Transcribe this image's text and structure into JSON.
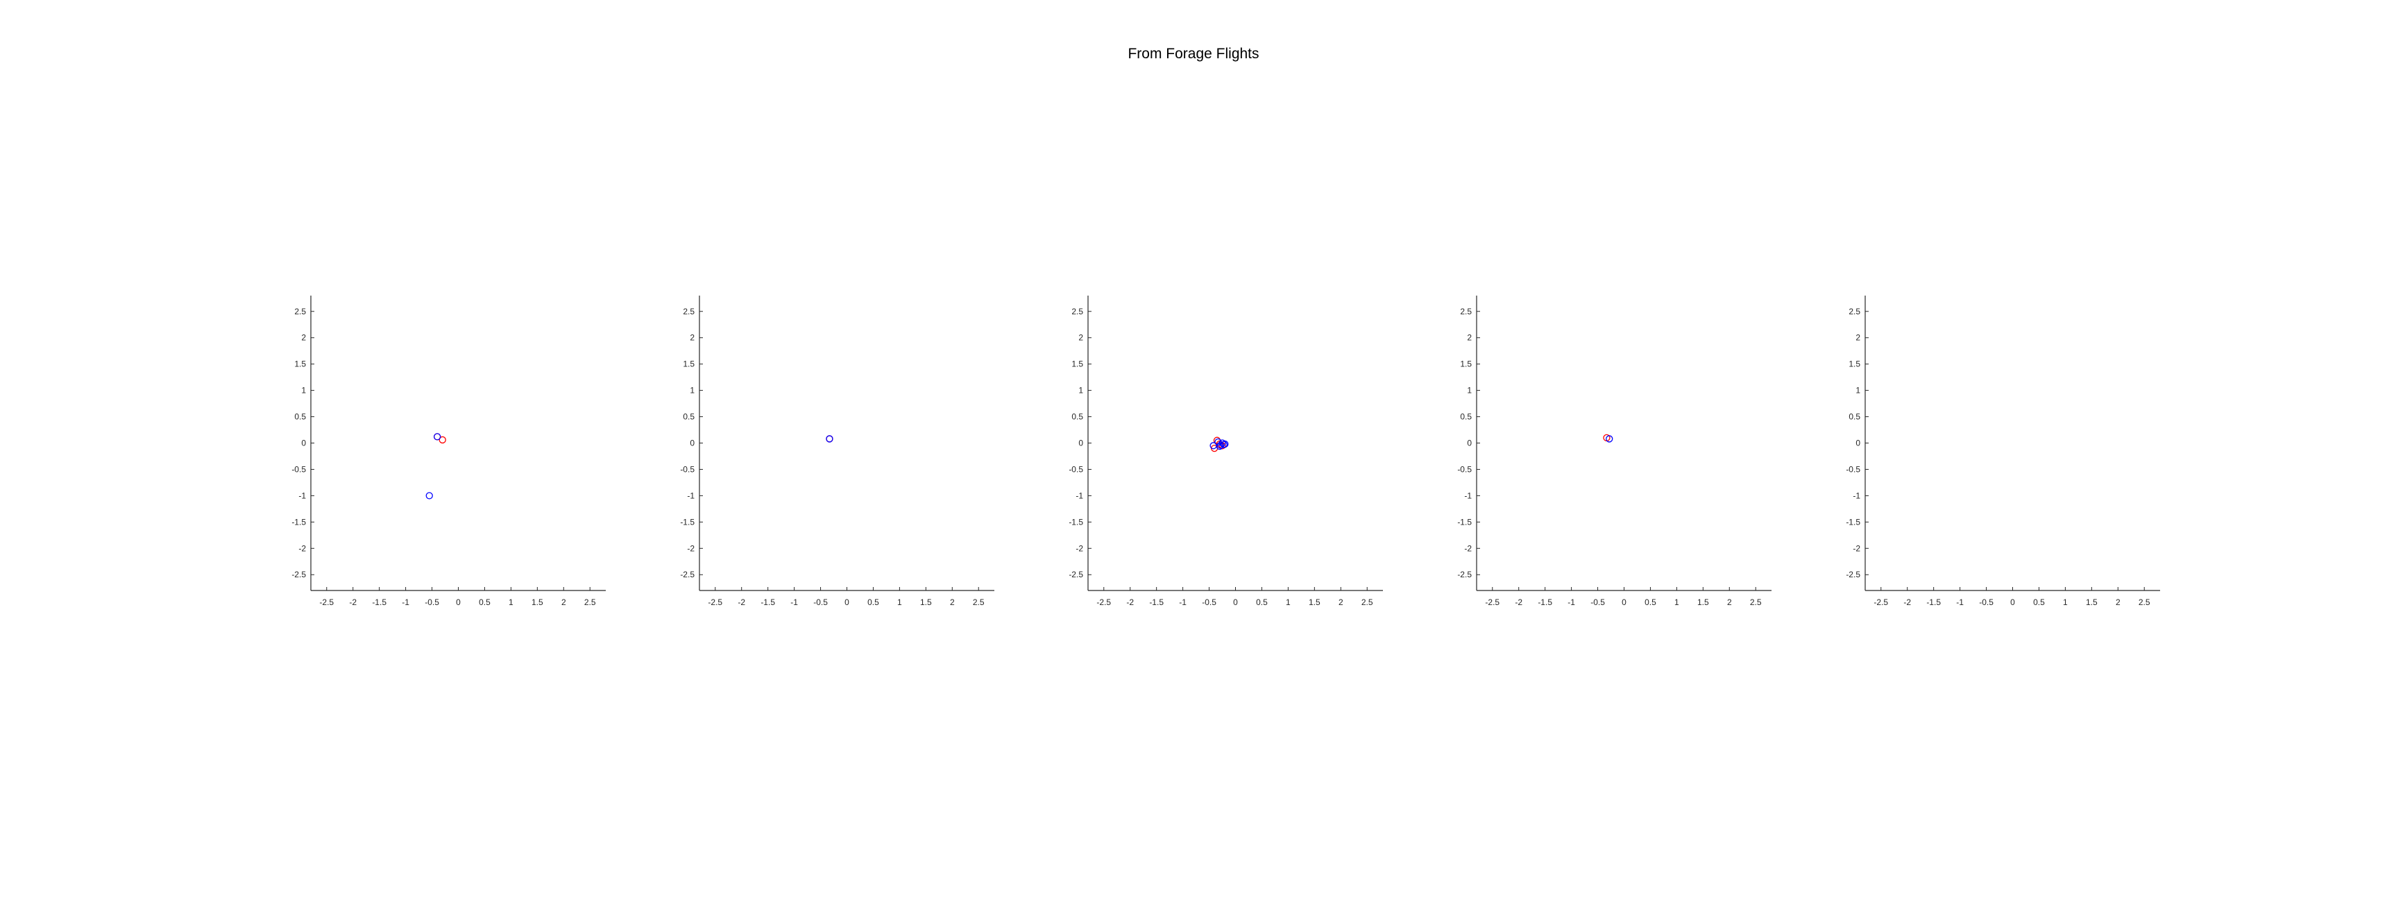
{
  "title": "From Forage Flights",
  "colors": {
    "red": "#ff0000",
    "blue": "#0000ff",
    "axis": "#262626"
  },
  "chart_data": [
    {
      "type": "scatter",
      "xlim": [
        -2.8,
        2.8
      ],
      "ylim": [
        -2.8,
        2.8
      ],
      "xticks": [
        "-2.5",
        "-2",
        "-1.5",
        "-1",
        "-0.5",
        "0",
        "0.5",
        "1",
        "1.5",
        "2",
        "2.5"
      ],
      "yticks": [
        "2.5",
        "2",
        "1.5",
        "1",
        "0.5",
        "0",
        "-0.5",
        "-1",
        "-1.5",
        "-2",
        "-2.5"
      ],
      "grid": false,
      "series": [
        {
          "color": "red",
          "points": [
            [
              -0.3,
              0.06
            ],
            [
              -0.4,
              0.12
            ]
          ]
        },
        {
          "color": "blue",
          "points": [
            [
              -0.4,
              0.12
            ],
            [
              -0.55,
              -1.0
            ]
          ]
        }
      ]
    },
    {
      "type": "scatter",
      "xlim": [
        -2.8,
        2.8
      ],
      "ylim": [
        -2.8,
        2.8
      ],
      "xticks": [
        "-2.5",
        "-2",
        "-1.5",
        "-1",
        "-0.5",
        "0",
        "0.5",
        "1",
        "1.5",
        "2",
        "2.5"
      ],
      "yticks": [
        "2.5",
        "2",
        "1.5",
        "1",
        "0.5",
        "0",
        "-0.5",
        "-1",
        "-1.5",
        "-2",
        "-2.5"
      ],
      "grid": false,
      "series": [
        {
          "color": "red",
          "points": [
            [
              -0.33,
              0.08
            ]
          ]
        },
        {
          "color": "blue",
          "points": [
            [
              -0.33,
              0.08
            ]
          ]
        }
      ]
    },
    {
      "type": "scatter",
      "xlim": [
        -2.8,
        2.8
      ],
      "ylim": [
        -2.8,
        2.8
      ],
      "xticks": [
        "-2.5",
        "-2",
        "-1.5",
        "-1",
        "-0.5",
        "0",
        "0.5",
        "1",
        "1.5",
        "2",
        "2.5"
      ],
      "yticks": [
        "2.5",
        "2",
        "1.5",
        "1",
        "0.5",
        "0",
        "-0.5",
        "-1",
        "-1.5",
        "-2",
        "-2.5"
      ],
      "grid": false,
      "series": [
        {
          "color": "red",
          "points": [
            [
              -0.4,
              -0.1
            ],
            [
              -0.35,
              0.05
            ],
            [
              -0.3,
              -0.02
            ],
            [
              -0.25,
              -0.05
            ]
          ]
        },
        {
          "color": "blue",
          "points": [
            [
              -0.42,
              -0.05
            ],
            [
              -0.33,
              0.02
            ],
            [
              -0.28,
              -0.04
            ],
            [
              -0.25,
              0.0
            ],
            [
              -0.22,
              -0.03
            ],
            [
              -0.3,
              -0.06
            ],
            [
              -0.2,
              -0.02
            ]
          ]
        }
      ]
    },
    {
      "type": "scatter",
      "xlim": [
        -2.8,
        2.8
      ],
      "ylim": [
        -2.8,
        2.8
      ],
      "xticks": [
        "-2.5",
        "-2",
        "-1.5",
        "-1",
        "-0.5",
        "0",
        "0.5",
        "1",
        "1.5",
        "2",
        "2.5"
      ],
      "yticks": [
        "2.5",
        "2",
        "1.5",
        "1",
        "0.5",
        "0",
        "-0.5",
        "-1",
        "-1.5",
        "-2",
        "-2.5"
      ],
      "grid": false,
      "series": [
        {
          "color": "red",
          "points": [
            [
              -0.33,
              0.1
            ]
          ]
        },
        {
          "color": "blue",
          "points": [
            [
              -0.28,
              0.08
            ]
          ]
        }
      ]
    },
    {
      "type": "scatter",
      "xlim": [
        -2.8,
        2.8
      ],
      "ylim": [
        -2.8,
        2.8
      ],
      "xticks": [
        "-2.5",
        "-2",
        "-1.5",
        "-1",
        "-0.5",
        "0",
        "0.5",
        "1",
        "1.5",
        "2",
        "2.5"
      ],
      "yticks": [
        "2.5",
        "2",
        "1.5",
        "1",
        "0.5",
        "0",
        "-0.5",
        "-1",
        "-1.5",
        "-2",
        "-2.5"
      ],
      "grid": false,
      "series": []
    }
  ]
}
